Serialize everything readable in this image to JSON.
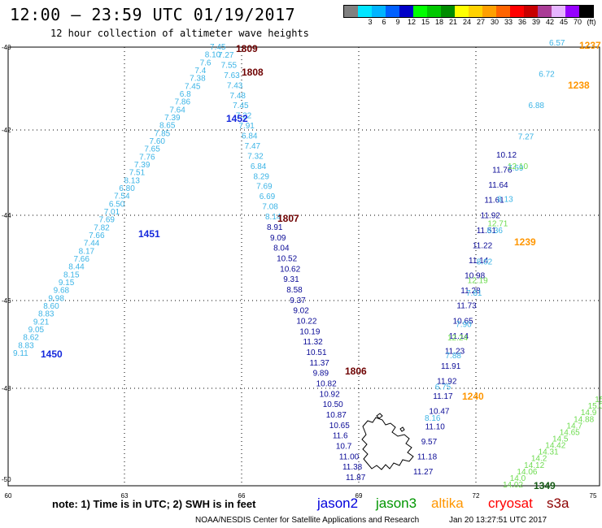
{
  "header": {
    "title": "12:00 – 23:59 UTC 01/19/2017",
    "subtitle": "12 hour collection of altimeter wave heights"
  },
  "colorbar": {
    "unit_label": "(ft)",
    "colors": [
      "#808080",
      "#00e5ff",
      "#00b4ff",
      "#0060ff",
      "#0000c8",
      "#00ff00",
      "#00c800",
      "#008c00",
      "#ffff00",
      "#ffd200",
      "#ffa000",
      "#ff6400",
      "#ff0000",
      "#c80000",
      "#aa3c96",
      "#e6b4ff",
      "#9600ff",
      "#000000"
    ],
    "ticks": [
      "3",
      "6",
      "9",
      "12",
      "15",
      "18",
      "21",
      "24",
      "27",
      "30",
      "33",
      "36",
      "39",
      "42",
      "45",
      "70"
    ]
  },
  "map": {
    "lon_labels": [
      "60",
      "63",
      "66",
      "69",
      "72",
      "75"
    ],
    "lat_labels": [
      "-40",
      "-42",
      "-44",
      "-46",
      "-48",
      "-50"
    ],
    "colors": {
      "light_blue": "#3cb4e6",
      "navy": "#0a0a96",
      "blue": "#1428dc",
      "green": "#6edc50",
      "dark_green": "#145a14",
      "orange": "#ff9600",
      "dark_red": "#6e0000"
    },
    "passes": [
      {
        "name": "pass-1450-lightblue",
        "color": "light_blue",
        "values": [
          "9.11",
          "8.83",
          "8.62",
          "9.05",
          "9.21",
          "8.83",
          "8.60",
          "9.98",
          "9.68",
          "9.15",
          "8.15",
          "8.44",
          "7.66",
          "8.17",
          "7.44",
          "7.66",
          "7.82",
          "7.69",
          "7.01",
          "6.50",
          "7.54",
          "6.80",
          "8.13",
          "7.51",
          "7.39",
          "7.76",
          "7.65",
          "7.60",
          "7.85",
          "8.65",
          "7.39",
          "7.64",
          "7.86",
          "6.8",
          "7.45",
          "7.38",
          "7.4",
          "7.6",
          "8.10",
          "7.45"
        ]
      },
      {
        "name": "pass-1808-lightblue",
        "color": "light_blue",
        "values": [
          "7.27",
          "7.55",
          "7.63",
          "7.43",
          "7.48",
          "7.45",
          "7.22",
          "7.91",
          "6.84",
          "7.47",
          "7.32",
          "6.84",
          "8.29",
          "7.69",
          "6.69",
          "7.08",
          "8.14"
        ]
      },
      {
        "name": "pass-1807-navy",
        "color": "navy",
        "values": [
          "8.91",
          "9.09",
          "8.04",
          "10.52",
          "10.62",
          "9.31",
          "8.58",
          "9.37",
          "9.02",
          "10.22",
          "10.19",
          "11.32",
          "10.51",
          "11.37",
          "9.89",
          "10.82",
          "10.92",
          "10.50",
          "10.87",
          "10.65",
          "11.6",
          "10.7",
          "11.00",
          "11.38",
          "11.87"
        ]
      },
      {
        "name": "pass-1240-navy",
        "color": "navy",
        "values": [
          "11.27",
          "11.18",
          "9.57",
          "11.10",
          "10.47",
          "11.17",
          "11.92",
          "11.91",
          "11.23",
          "11.14",
          "10.65",
          "11.73",
          "11.28",
          "10.98",
          "11.14",
          "11.22",
          "11.51",
          "11.92",
          "11.61",
          "11.64",
          "11.76",
          "10.12"
        ]
      },
      {
        "name": "pass-1240-lightblue",
        "color": "light_blue",
        "values": [
          "8.16",
          "6.75",
          "7.88",
          "7.90",
          "7.81",
          "8.02",
          "8.36",
          "8.13",
          "7.59",
          "7.27",
          "6.88",
          "6.72",
          "6.57"
        ]
      },
      {
        "name": "pass-1240-green",
        "color": "green",
        "values": [
          "12.24",
          "12.19",
          "12.71",
          "12.10"
        ]
      },
      {
        "name": "pass-1349-green",
        "color": "green",
        "values": [
          "14.02",
          "14.0",
          "14.06",
          "14.12",
          "14.2",
          "14.31",
          "14.42",
          "14.5",
          "14.65",
          "14.7",
          "14.88",
          "14.9",
          "15.0",
          "15.1",
          "15.2"
        ]
      }
    ],
    "time_labels": [
      {
        "text": "1450",
        "color": "blue"
      },
      {
        "text": "1451",
        "color": "blue"
      },
      {
        "text": "1452",
        "color": "blue"
      },
      {
        "text": "1809",
        "color": "dark_red"
      },
      {
        "text": "1808",
        "color": "dark_red"
      },
      {
        "text": "1807",
        "color": "dark_red"
      },
      {
        "text": "1806",
        "color": "dark_red"
      },
      {
        "text": "1237",
        "color": "orange"
      },
      {
        "text": "1238",
        "color": "orange"
      },
      {
        "text": "1239",
        "color": "orange"
      },
      {
        "text": "1240",
        "color": "orange"
      },
      {
        "text": "1349",
        "color": "dark_green"
      }
    ]
  },
  "legend": {
    "note": "note: 1) Time is in UTC; 2) SWH is in feet",
    "satellites": [
      {
        "label": "jason2",
        "color": "#0000dc"
      },
      {
        "label": "jason3",
        "color": "#009600"
      },
      {
        "label": "altika",
        "color": "#ff9600"
      },
      {
        "label": "cryosat",
        "color": "#ff0000"
      },
      {
        "label": "s3a",
        "color": "#8c0000"
      }
    ]
  },
  "footer": {
    "credit": "NOAA/NESDIS Center for Satellite Applications and Research",
    "timestamp": "Jan 20 13:27:51 UTC 2017"
  }
}
